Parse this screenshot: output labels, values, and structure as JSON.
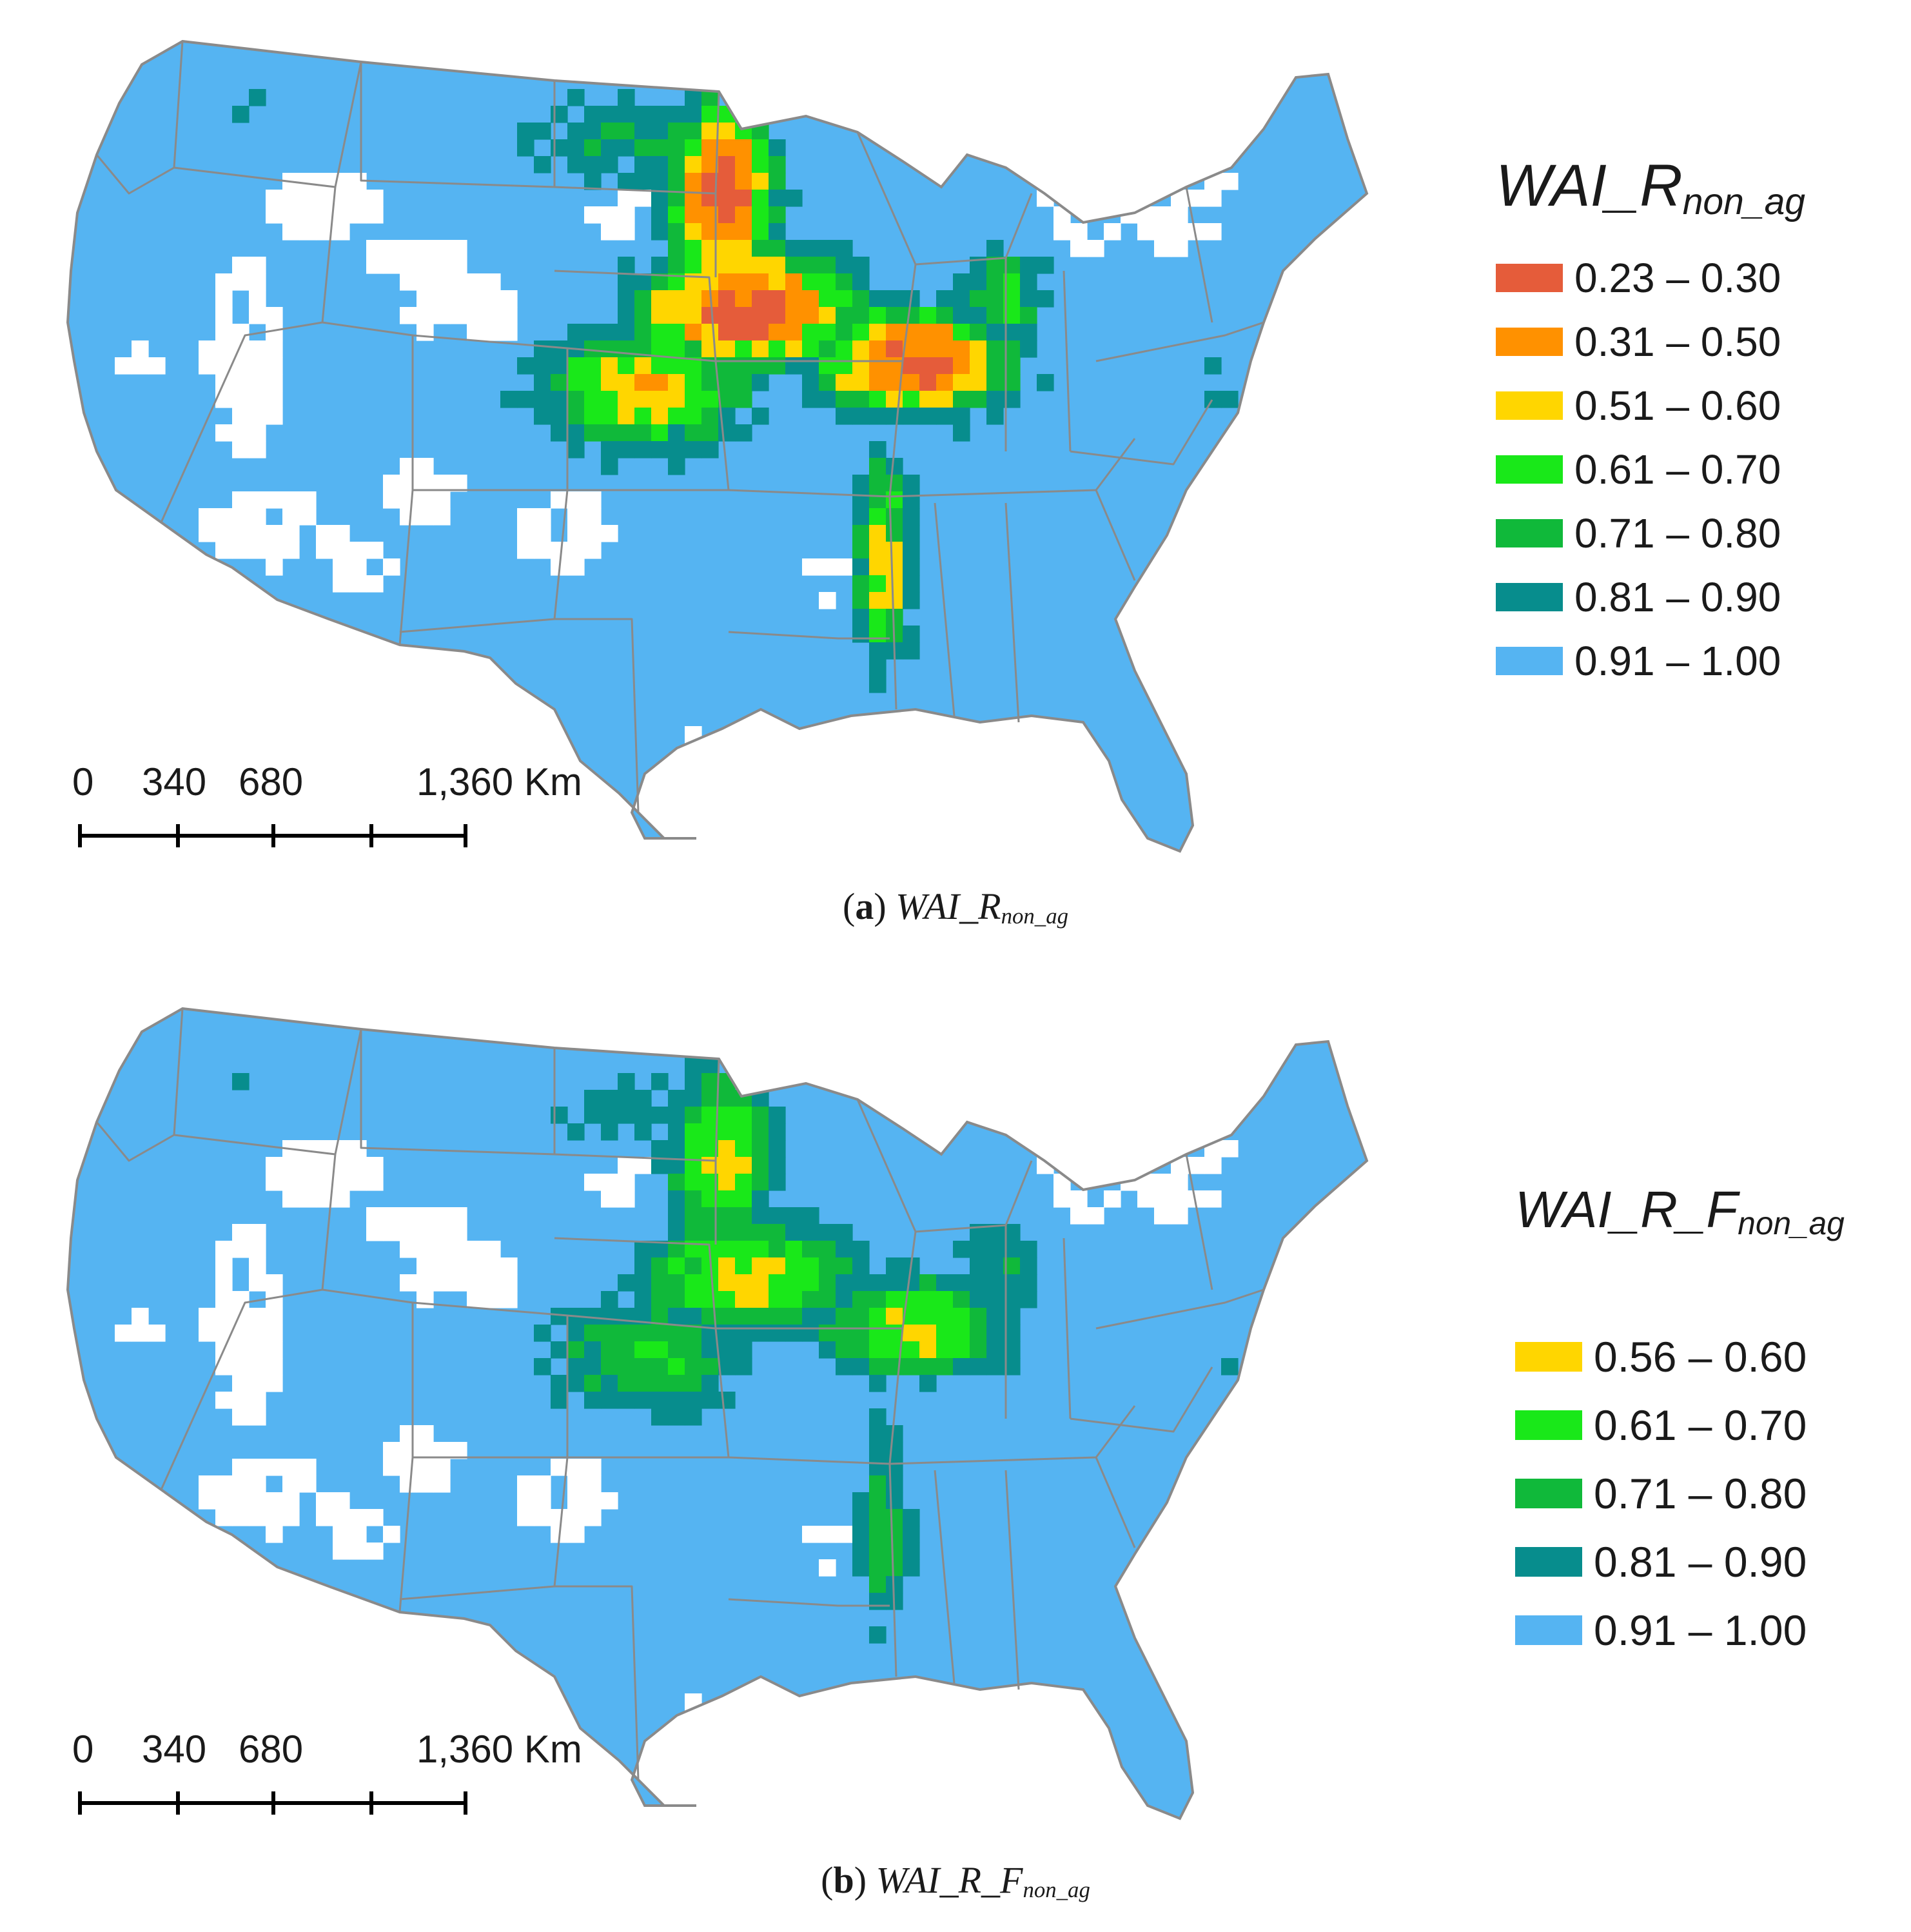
{
  "panels": [
    {
      "id": "a",
      "legend_title": "WAI_R",
      "legend_title_sub": "non_ag",
      "legend": [
        {
          "label": "0.23 – 0.30",
          "color": "#e55c3a"
        },
        {
          "label": "0.31 – 0.50",
          "color": "#ff9100"
        },
        {
          "label": "0.51 – 0.60",
          "color": "#ffd600"
        },
        {
          "label": "0.61 – 0.70",
          "color": "#19e819"
        },
        {
          "label": "0.71 – 0.80",
          "color": "#10b93a"
        },
        {
          "label": "0.81 – 0.90",
          "color": "#078d8d"
        },
        {
          "label": "0.91 – 1.00",
          "color": "#55b4f2"
        }
      ],
      "scale_labels": [
        "0",
        "340",
        "680",
        "1,360 Km"
      ],
      "caption_letter": "a",
      "caption_name": "WAI_R",
      "caption_sub": "non_ag"
    },
    {
      "id": "b",
      "legend_title": "WAI_R_F",
      "legend_title_sub": "non_ag",
      "legend": [
        {
          "label": "0.56 – 0.60",
          "color": "#ffd600"
        },
        {
          "label": "0.61 – 0.70",
          "color": "#19e819"
        },
        {
          "label": "0.71 – 0.80",
          "color": "#10b93a"
        },
        {
          "label": "0.81 – 0.90",
          "color": "#078d8d"
        },
        {
          "label": "0.91 – 1.00",
          "color": "#55b4f2"
        }
      ],
      "scale_labels": [
        "0",
        "340",
        "680",
        "1,360 Km"
      ],
      "caption_letter": "b",
      "caption_name": "WAI_R_F",
      "caption_sub": "non_ag"
    }
  ],
  "colors": {
    "boundary": "#8a8a8a",
    "nodata": "#ffffff"
  }
}
